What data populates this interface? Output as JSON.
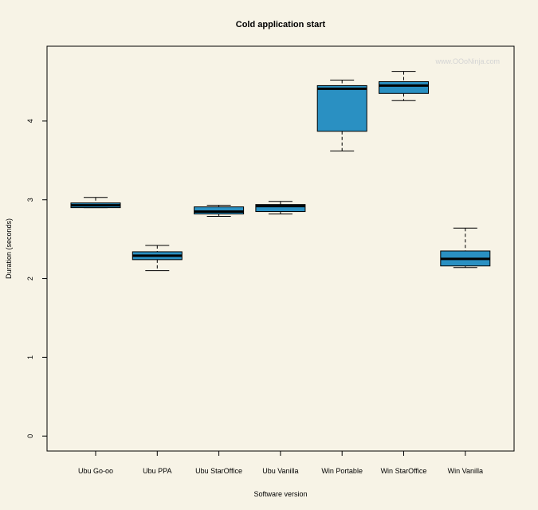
{
  "chart_data": {
    "type": "boxplot",
    "title": "Cold application start",
    "xlabel": "Software version",
    "ylabel": "Duration (seconds)",
    "watermark": "www.OOoNinja.com",
    "ylim": [
      -0.19,
      4.95
    ],
    "yticks": [
      0,
      1,
      2,
      3,
      4
    ],
    "grid": false,
    "box_color": "#2a90c2",
    "background": "#f7f3e6",
    "categories": [
      "Ubu Go-oo",
      "Ubu PPA",
      "Ubu StarOffice",
      "Ubu Vanilla",
      "Win Portable",
      "Win StarOffice",
      "Win Vanilla"
    ],
    "series": [
      {
        "name": "Ubu Go-oo",
        "min": 2.9,
        "q1": 2.9,
        "median": 2.93,
        "q3": 2.96,
        "max": 3.03
      },
      {
        "name": "Ubu PPA",
        "min": 2.1,
        "q1": 2.24,
        "median": 2.29,
        "q3": 2.34,
        "max": 2.42
      },
      {
        "name": "Ubu StarOffice",
        "min": 2.79,
        "q1": 2.82,
        "median": 2.85,
        "q3": 2.91,
        "max": 2.93
      },
      {
        "name": "Ubu Vanilla",
        "min": 2.82,
        "q1": 2.85,
        "median": 2.92,
        "q3": 2.94,
        "max": 2.98
      },
      {
        "name": "Win Portable",
        "min": 3.62,
        "q1": 3.87,
        "median": 4.41,
        "q3": 4.45,
        "max": 4.52
      },
      {
        "name": "Win StarOffice",
        "min": 4.26,
        "q1": 4.35,
        "median": 4.45,
        "q3": 4.5,
        "max": 4.63
      },
      {
        "name": "Win Vanilla",
        "min": 2.14,
        "q1": 2.16,
        "median": 2.25,
        "q3": 2.35,
        "max": 2.64
      }
    ]
  }
}
